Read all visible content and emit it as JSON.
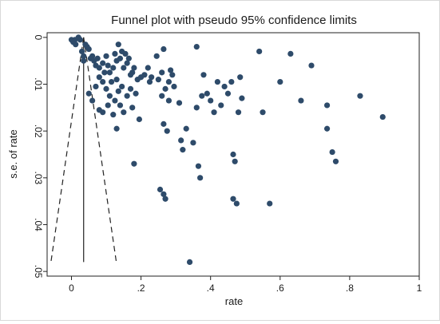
{
  "chart_data": {
    "type": "scatter",
    "title": "Funnel plot with pseudo 95% confidence limits",
    "xlabel": "rate",
    "ylabel": "s.e. of rate",
    "xlim": [
      -0.07,
      1.0
    ],
    "ylim": [
      0.051,
      -0.001
    ],
    "y_reversed": true,
    "grid": false,
    "legend": "none",
    "x_ticks": [
      {
        "value": 0,
        "label": "0"
      },
      {
        "value": 0.2,
        "label": ".2"
      },
      {
        "value": 0.4,
        "label": ".4"
      },
      {
        "value": 0.6,
        "label": ".6"
      },
      {
        "value": 0.8,
        "label": ".8"
      },
      {
        "value": 1.0,
        "label": "1"
      }
    ],
    "y_ticks": [
      {
        "value": 0,
        "label": "0"
      },
      {
        "value": 0.01,
        "label": ".01"
      },
      {
        "value": 0.02,
        "label": ".02"
      },
      {
        "value": 0.03,
        "label": ".03"
      },
      {
        "value": 0.04,
        "label": ".04"
      },
      {
        "value": 0.05,
        "label": ".05"
      }
    ],
    "pooled_estimate": 0.035,
    "funnel_limits": {
      "se_max": 0.048,
      "left": [
        [
          0.035,
          0.0
        ],
        [
          -0.059,
          0.048
        ]
      ],
      "right": [
        [
          0.035,
          0.0
        ],
        [
          0.129,
          0.048
        ]
      ]
    },
    "points": [
      [
        0.0,
        0.0005
      ],
      [
        0.005,
        0.001
      ],
      [
        0.01,
        0.0005
      ],
      [
        0.012,
        0.0015
      ],
      [
        0.02,
        0.0
      ],
      [
        0.025,
        0.0005
      ],
      [
        0.03,
        0.003
      ],
      [
        0.035,
        0.004
      ],
      [
        0.04,
        0.0015
      ],
      [
        0.045,
        0.002
      ],
      [
        0.035,
        0.005
      ],
      [
        0.05,
        0.0025
      ],
      [
        0.055,
        0.0045
      ],
      [
        0.06,
        0.004
      ],
      [
        0.065,
        0.005
      ],
      [
        0.07,
        0.006
      ],
      [
        0.075,
        0.0045
      ],
      [
        0.08,
        0.0065
      ],
      [
        0.09,
        0.0055
      ],
      [
        0.095,
        0.0075
      ],
      [
        0.1,
        0.004
      ],
      [
        0.105,
        0.006
      ],
      [
        0.11,
        0.0075
      ],
      [
        0.12,
        0.0065
      ],
      [
        0.125,
        0.0035
      ],
      [
        0.13,
        0.005
      ],
      [
        0.135,
        0.0015
      ],
      [
        0.14,
        0.0045
      ],
      [
        0.145,
        0.003
      ],
      [
        0.15,
        0.0065
      ],
      [
        0.155,
        0.0035
      ],
      [
        0.16,
        0.0055
      ],
      [
        0.165,
        0.0045
      ],
      [
        0.17,
        0.008
      ],
      [
        0.175,
        0.0075
      ],
      [
        0.18,
        0.0065
      ],
      [
        0.19,
        0.009
      ],
      [
        0.2,
        0.0085
      ],
      [
        0.21,
        0.008
      ],
      [
        0.22,
        0.0065
      ],
      [
        0.225,
        0.0095
      ],
      [
        0.23,
        0.0085
      ],
      [
        0.245,
        0.004
      ],
      [
        0.25,
        0.009
      ],
      [
        0.26,
        0.0075
      ],
      [
        0.265,
        0.0025
      ],
      [
        0.27,
        0.011
      ],
      [
        0.28,
        0.0095
      ],
      [
        0.285,
        0.007
      ],
      [
        0.29,
        0.008
      ],
      [
        0.295,
        0.0105
      ],
      [
        0.08,
        0.0085
      ],
      [
        0.09,
        0.0095
      ],
      [
        0.1,
        0.011
      ],
      [
        0.11,
        0.0125
      ],
      [
        0.115,
        0.0095
      ],
      [
        0.125,
        0.0135
      ],
      [
        0.13,
        0.009
      ],
      [
        0.135,
        0.0115
      ],
      [
        0.14,
        0.0145
      ],
      [
        0.145,
        0.0105
      ],
      [
        0.15,
        0.016
      ],
      [
        0.16,
        0.0125
      ],
      [
        0.17,
        0.011
      ],
      [
        0.175,
        0.015
      ],
      [
        0.185,
        0.012
      ],
      [
        0.195,
        0.0175
      ],
      [
        0.05,
        0.012
      ],
      [
        0.06,
        0.0135
      ],
      [
        0.07,
        0.0105
      ],
      [
        0.08,
        0.0155
      ],
      [
        0.09,
        0.016
      ],
      [
        0.105,
        0.0145
      ],
      [
        0.12,
        0.0165
      ],
      [
        0.13,
        0.0195
      ],
      [
        0.18,
        0.027
      ],
      [
        0.26,
        0.0125
      ],
      [
        0.265,
        0.0185
      ],
      [
        0.275,
        0.02
      ],
      [
        0.28,
        0.0135
      ],
      [
        0.31,
        0.014
      ],
      [
        0.315,
        0.022
      ],
      [
        0.32,
        0.024
      ],
      [
        0.33,
        0.0195
      ],
      [
        0.35,
        0.0225
      ],
      [
        0.36,
        0.015
      ],
      [
        0.365,
        0.0275
      ],
      [
        0.37,
        0.03
      ],
      [
        0.375,
        0.0125
      ],
      [
        0.38,
        0.008
      ],
      [
        0.39,
        0.012
      ],
      [
        0.4,
        0.0135
      ],
      [
        0.41,
        0.016
      ],
      [
        0.42,
        0.0095
      ],
      [
        0.43,
        0.0145
      ],
      [
        0.44,
        0.0105
      ],
      [
        0.45,
        0.012
      ],
      [
        0.46,
        0.0095
      ],
      [
        0.465,
        0.025
      ],
      [
        0.47,
        0.0265
      ],
      [
        0.48,
        0.016
      ],
      [
        0.485,
        0.0085
      ],
      [
        0.49,
        0.013
      ],
      [
        0.36,
        0.002
      ],
      [
        0.54,
        0.003
      ],
      [
        0.63,
        0.0035
      ],
      [
        0.55,
        0.016
      ],
      [
        0.6,
        0.0095
      ],
      [
        0.66,
        0.0135
      ],
      [
        0.69,
        0.006
      ],
      [
        0.735,
        0.0145
      ],
      [
        0.735,
        0.0195
      ],
      [
        0.75,
        0.0245
      ],
      [
        0.76,
        0.0265
      ],
      [
        0.83,
        0.0125
      ],
      [
        0.895,
        0.017
      ],
      [
        0.255,
        0.0325
      ],
      [
        0.265,
        0.0335
      ],
      [
        0.27,
        0.0345
      ],
      [
        0.465,
        0.0345
      ],
      [
        0.475,
        0.0355
      ],
      [
        0.57,
        0.0355
      ],
      [
        0.34,
        0.048
      ]
    ]
  }
}
